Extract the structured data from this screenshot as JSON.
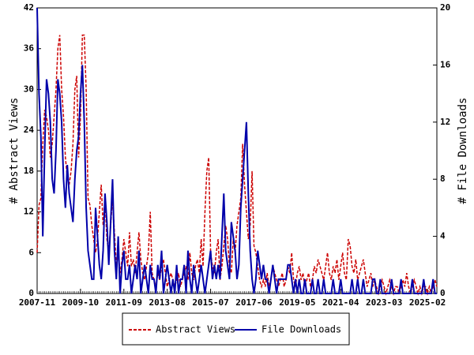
{
  "chart_data": {
    "type": "line",
    "y_label": "# Abstract Views",
    "y2_label": "# File Downloads",
    "x": [
      "2007-11",
      "2007-12",
      "2008-01",
      "2008-02",
      "2008-03",
      "2008-04",
      "2008-05",
      "2008-06",
      "2008-07",
      "2008-08",
      "2008-09",
      "2008-10",
      "2008-11",
      "2008-12",
      "2009-01",
      "2009-02",
      "2009-03",
      "2009-04",
      "2009-05",
      "2009-06",
      "2009-07",
      "2009-08",
      "2009-09",
      "2009-10",
      "2009-11",
      "2009-12",
      "2010-01",
      "2010-02",
      "2010-03",
      "2010-04",
      "2010-05",
      "2010-06",
      "2010-07",
      "2010-08",
      "2010-09",
      "2010-10",
      "2010-11",
      "2010-12",
      "2011-01",
      "2011-02",
      "2011-03",
      "2011-04",
      "2011-05",
      "2011-06",
      "2011-07",
      "2011-08",
      "2011-09",
      "2011-10",
      "2011-11",
      "2011-12",
      "2012-01",
      "2012-02",
      "2012-03",
      "2012-04",
      "2012-05",
      "2012-06",
      "2012-07",
      "2012-08",
      "2012-09",
      "2012-10",
      "2012-11",
      "2012-12",
      "2013-01",
      "2013-02",
      "2013-03",
      "2013-04",
      "2013-05",
      "2013-06",
      "2013-07",
      "2013-08",
      "2013-09",
      "2013-10",
      "2013-11",
      "2013-12",
      "2014-01",
      "2014-02",
      "2014-03",
      "2014-04",
      "2014-05",
      "2014-06",
      "2014-07",
      "2014-08",
      "2014-09",
      "2014-10",
      "2014-11",
      "2014-12",
      "2015-01",
      "2015-02",
      "2015-03",
      "2015-04",
      "2015-05",
      "2015-06",
      "2015-07",
      "2015-08",
      "2015-09",
      "2015-10",
      "2015-11",
      "2015-12",
      "2016-01",
      "2016-02",
      "2016-03",
      "2016-04",
      "2016-05",
      "2016-06",
      "2016-07",
      "2016-08",
      "2016-09",
      "2016-10",
      "2016-11",
      "2016-12",
      "2017-01",
      "2017-02",
      "2017-03",
      "2017-04",
      "2017-05",
      "2017-06",
      "2017-07",
      "2017-08",
      "2017-09",
      "2017-10",
      "2017-11",
      "2017-12",
      "2018-01",
      "2018-02",
      "2018-03",
      "2018-04",
      "2018-05",
      "2018-06",
      "2018-07",
      "2018-08",
      "2018-09",
      "2018-10",
      "2018-11",
      "2018-12",
      "2019-01",
      "2019-02",
      "2019-03",
      "2019-04",
      "2019-05",
      "2019-06",
      "2019-07",
      "2019-08",
      "2019-09",
      "2019-10",
      "2019-11",
      "2019-12",
      "2020-01",
      "2020-02",
      "2020-03",
      "2020-04",
      "2020-05",
      "2020-06",
      "2020-07",
      "2020-08",
      "2020-09",
      "2020-10",
      "2020-11",
      "2020-12",
      "2021-01",
      "2021-02",
      "2021-03",
      "2021-04",
      "2021-05",
      "2021-06",
      "2021-07",
      "2021-08",
      "2021-09",
      "2021-10",
      "2021-11",
      "2021-12",
      "2022-01",
      "2022-02",
      "2022-03",
      "2022-04",
      "2022-05",
      "2022-06",
      "2022-07",
      "2022-08",
      "2022-09",
      "2022-10",
      "2022-11",
      "2022-12",
      "2023-01",
      "2023-02",
      "2023-03",
      "2023-04",
      "2023-05",
      "2023-06",
      "2023-07",
      "2023-08",
      "2023-09",
      "2023-10",
      "2023-11",
      "2023-12",
      "2024-01",
      "2024-02",
      "2024-03",
      "2024-04",
      "2024-05",
      "2024-06",
      "2024-07",
      "2024-08",
      "2024-09",
      "2024-10",
      "2024-11",
      "2024-12",
      "2025-01",
      "2025-02",
      "2025-03",
      "2025-04",
      "2025-05",
      "2025-06",
      "2025-07"
    ],
    "xticks": [
      "2007-11",
      "2009-10",
      "2011-09",
      "2013-08",
      "2015-07",
      "2017-06",
      "2019-05",
      "2021-04",
      "2023-03",
      "2025-02"
    ],
    "ylim": [
      0,
      42
    ],
    "yticks": [
      0,
      6,
      12,
      18,
      24,
      30,
      36,
      42
    ],
    "y2lim": [
      0,
      20
    ],
    "y2ticks": [
      0,
      4,
      8,
      12,
      16,
      20
    ],
    "series": [
      {
        "name": "Abstract Views",
        "color": "#cc0000",
        "dash": true,
        "values": [
          6,
          13,
          14,
          22,
          27,
          26,
          24,
          20,
          22,
          26,
          30,
          36,
          38,
          30,
          26,
          20,
          17,
          16,
          18,
          22,
          30,
          32,
          20,
          26,
          38,
          38,
          30,
          14,
          13,
          10,
          8,
          6,
          8,
          12,
          16,
          10,
          14,
          8,
          6,
          10,
          14,
          9,
          4,
          6,
          3,
          5,
          8,
          6,
          4,
          9,
          4,
          5,
          3,
          6,
          9,
          5,
          3,
          2,
          4,
          6,
          12,
          3,
          2,
          1,
          3,
          2,
          4,
          5,
          3,
          1,
          2,
          3,
          2,
          1,
          2,
          3,
          1,
          2,
          3,
          4,
          2,
          6,
          3,
          2,
          4,
          5,
          3,
          8,
          4,
          12,
          18,
          20,
          6,
          4,
          3,
          6,
          8,
          2,
          4,
          7,
          10,
          8,
          4,
          3,
          8,
          6,
          10,
          12,
          14,
          22,
          16,
          12,
          8,
          10,
          18,
          7,
          6,
          4,
          2,
          1,
          2,
          1,
          3,
          1,
          2,
          4,
          3,
          2,
          1,
          2,
          3,
          1,
          2,
          4,
          3,
          6,
          2,
          1,
          3,
          4,
          2,
          3,
          1,
          2,
          3,
          1,
          2,
          4,
          3,
          5,
          4,
          3,
          2,
          4,
          6,
          3,
          2,
          4,
          3,
          5,
          2,
          4,
          6,
          3,
          2,
          8,
          7,
          4,
          3,
          5,
          2,
          3,
          4,
          5,
          3,
          1,
          2,
          3,
          1,
          2,
          1,
          0,
          1,
          2,
          1,
          0,
          1,
          2,
          1,
          0,
          1,
          1,
          0,
          1,
          2,
          1,
          3,
          1,
          0,
          1,
          2,
          1,
          0,
          1,
          0,
          1,
          1,
          0,
          1,
          0,
          1,
          2,
          1
        ]
      },
      {
        "name": "File Downloads",
        "color": "#0000aa",
        "axis": "y2",
        "values": [
          20,
          14,
          11,
          4,
          10,
          15,
          14,
          12,
          8,
          7,
          10,
          15,
          14,
          12,
          8,
          6,
          9,
          7,
          6,
          5,
          8,
          10,
          11,
          14,
          16,
          12,
          6,
          3,
          2,
          1,
          1,
          6,
          4,
          2,
          1,
          3,
          7,
          5,
          2,
          5,
          8,
          3,
          1,
          4,
          0,
          2,
          3,
          1,
          1,
          2,
          0,
          1,
          2,
          1,
          3,
          0,
          1,
          2,
          1,
          0,
          2,
          1,
          1,
          0,
          2,
          1,
          3,
          0,
          1,
          2,
          1,
          0,
          1,
          0,
          2,
          0,
          1,
          1,
          2,
          0,
          3,
          1,
          0,
          2,
          1,
          0,
          1,
          2,
          1,
          0,
          1,
          2,
          3,
          1,
          2,
          1,
          2,
          1,
          4,
          7,
          3,
          2,
          1,
          5,
          4,
          3,
          1,
          2,
          6,
          8,
          10,
          12,
          7,
          3,
          1,
          0,
          1,
          3,
          2,
          1,
          2,
          1,
          1,
          0,
          1,
          2,
          1,
          0,
          1,
          1,
          1,
          1,
          1,
          2,
          2,
          1,
          0,
          1,
          0,
          1,
          0,
          0,
          1,
          0,
          0,
          0,
          1,
          0,
          0,
          1,
          0,
          0,
          1,
          0,
          0,
          0,
          0,
          1,
          0,
          0,
          0,
          1,
          0,
          0,
          0,
          0,
          0,
          1,
          0,
          0,
          1,
          0,
          0,
          1,
          0,
          0,
          0,
          0,
          1,
          1,
          0,
          0,
          1,
          0,
          0,
          0,
          0,
          0,
          1,
          0,
          0,
          0,
          0,
          1,
          0,
          0,
          0,
          0,
          0,
          1,
          0,
          0,
          0,
          0,
          0,
          1,
          0,
          0,
          0,
          0,
          1,
          0,
          0
        ]
      }
    ],
    "legend": "bottom"
  }
}
